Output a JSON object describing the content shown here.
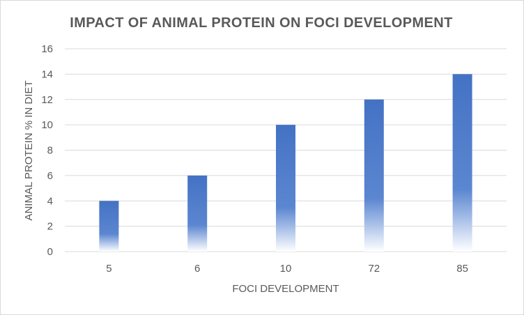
{
  "chart_data": {
    "type": "bar",
    "title": "IMPACT OF ANIMAL PROTEIN ON FOCI DEVELOPMENT",
    "xlabel": "FOCI DEVELOPMENT",
    "ylabel": "ANIMAL PROTEIN % IN DIET",
    "categories": [
      "5",
      "6",
      "10",
      "72",
      "85"
    ],
    "values": [
      4,
      6,
      10,
      12,
      14
    ],
    "ylim": [
      0,
      16
    ],
    "yticks": [
      "0",
      "2",
      "4",
      "6",
      "8",
      "10",
      "12",
      "14",
      "16"
    ],
    "grid": true,
    "legend": "none",
    "colors": {
      "bar": "#4472c4",
      "grid": "#d9d9d9",
      "text": "#595959"
    }
  }
}
